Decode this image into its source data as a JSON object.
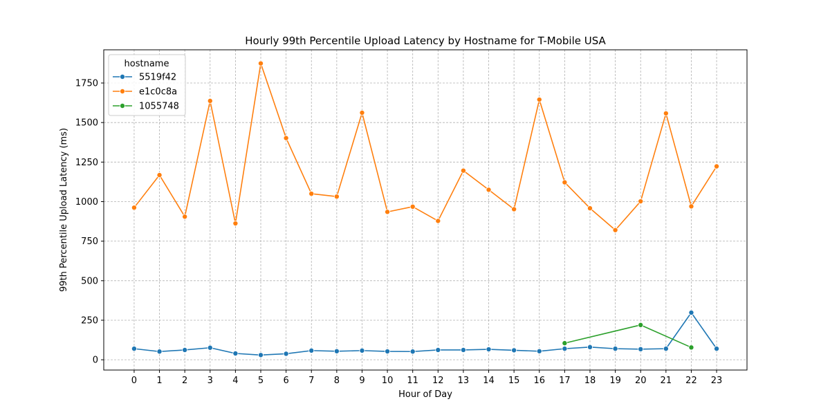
{
  "chart_data": {
    "type": "line",
    "title": "Hourly 99th Percentile Upload Latency by Hostname for T-Mobile USA",
    "xlabel": "Hour of Day",
    "ylabel": "99th Percentile Upload Latency (ms)",
    "xlim": [
      -1.2,
      24.2
    ],
    "ylim": [
      -65,
      1960
    ],
    "x_ticks": [
      0,
      1,
      2,
      3,
      4,
      5,
      6,
      7,
      8,
      9,
      10,
      11,
      12,
      13,
      14,
      15,
      16,
      17,
      18,
      19,
      20,
      21,
      22,
      23
    ],
    "y_ticks": [
      0,
      250,
      500,
      750,
      1000,
      1250,
      1500,
      1750
    ],
    "grid": true,
    "legend": {
      "title": "hostname",
      "position": "top-left"
    },
    "series": [
      {
        "name": "5519f42",
        "color": "#1f77b4",
        "x": [
          0,
          1,
          2,
          3,
          4,
          5,
          6,
          7,
          8,
          9,
          10,
          11,
          12,
          13,
          14,
          15,
          16,
          17,
          18,
          19,
          20,
          21,
          22,
          23
        ],
        "values": [
          70,
          52,
          62,
          76,
          40,
          30,
          38,
          58,
          54,
          58,
          53,
          52,
          62,
          62,
          66,
          60,
          54,
          70,
          80,
          70,
          67,
          70,
          298,
          70
        ]
      },
      {
        "name": "e1c0c8a",
        "color": "#ff7f0e",
        "x": [
          0,
          1,
          2,
          3,
          4,
          5,
          6,
          7,
          8,
          9,
          10,
          11,
          12,
          13,
          14,
          15,
          16,
          17,
          18,
          19,
          20,
          21,
          22,
          23
        ],
        "values": [
          962,
          1168,
          905,
          1637,
          862,
          1874,
          1402,
          1050,
          1032,
          1562,
          935,
          968,
          878,
          1196,
          1075,
          952,
          1645,
          1122,
          958,
          820,
          1002,
          1558,
          970,
          1223
        ]
      },
      {
        "name": "1055748",
        "color": "#2ca02c",
        "x": [
          17,
          20,
          22
        ],
        "values": [
          105,
          220,
          78
        ]
      }
    ]
  }
}
